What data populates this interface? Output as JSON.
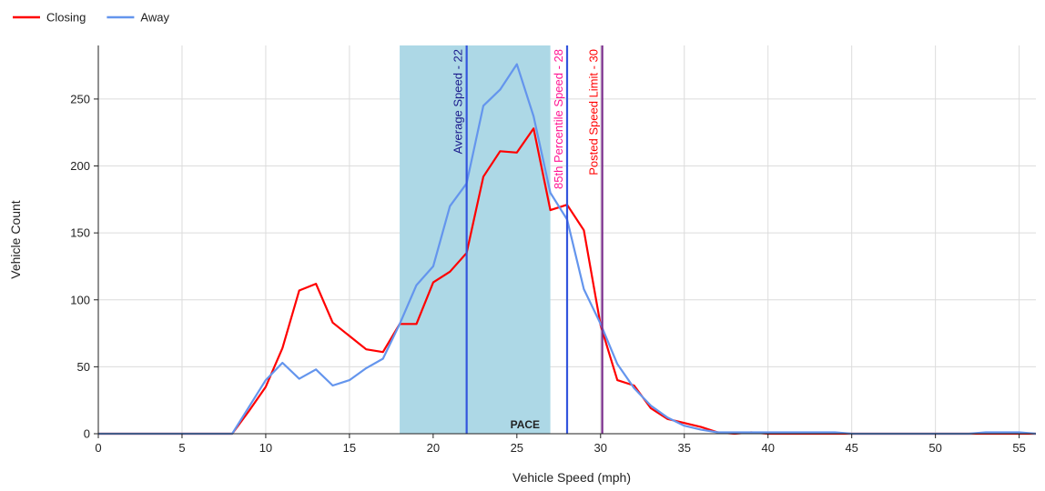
{
  "chart_data": {
    "type": "line",
    "xlabel": "Vehicle Speed (mph)",
    "ylabel": "Vehicle Count",
    "xlim": [
      0,
      56
    ],
    "ylim": [
      0,
      290
    ],
    "xticks": [
      0,
      5,
      10,
      15,
      20,
      25,
      30,
      35,
      40,
      45,
      50,
      55
    ],
    "yticks": [
      0,
      50,
      100,
      150,
      200,
      250
    ],
    "grid": true,
    "legend_position": "top-left",
    "x": [
      0,
      1,
      2,
      3,
      4,
      5,
      6,
      7,
      8,
      9,
      10,
      11,
      12,
      13,
      14,
      15,
      16,
      17,
      18,
      19,
      20,
      21,
      22,
      23,
      24,
      25,
      26,
      27,
      28,
      29,
      30,
      31,
      32,
      33,
      34,
      35,
      36,
      37,
      38,
      39,
      40,
      41,
      42,
      43,
      44,
      45,
      46,
      47,
      48,
      49,
      50,
      51,
      52,
      53,
      54,
      55,
      56
    ],
    "series": [
      {
        "name": "Closing",
        "color": "#ff0000",
        "values": [
          0,
          0,
          0,
          0,
          0,
          0,
          0,
          0,
          0,
          17,
          35,
          64,
          107,
          112,
          83,
          73,
          63,
          61,
          82,
          82,
          113,
          121,
          135,
          192,
          211,
          210,
          228,
          167,
          171,
          152,
          81,
          40,
          36,
          19,
          11,
          8,
          5,
          1,
          0,
          1,
          0,
          0,
          0,
          0,
          0,
          0,
          0,
          0,
          0,
          0,
          0,
          0,
          0,
          0,
          0,
          0,
          0
        ]
      },
      {
        "name": "Away",
        "color": "#6495ed",
        "values": [
          0,
          0,
          0,
          0,
          0,
          0,
          0,
          0,
          0,
          20,
          40,
          53,
          41,
          48,
          36,
          40,
          49,
          56,
          82,
          111,
          125,
          170,
          187,
          245,
          257,
          276,
          237,
          180,
          160,
          108,
          82,
          52,
          34,
          21,
          12,
          6,
          3,
          1,
          1,
          1,
          1,
          1,
          1,
          1,
          1,
          0,
          0,
          0,
          0,
          0,
          0,
          0,
          0,
          1,
          1,
          1,
          0
        ]
      }
    ],
    "pace_band": {
      "start": 18,
      "end": 27,
      "label": "PACE",
      "color": "#add8e6"
    },
    "markers": [
      {
        "label": "Average Speed - 22",
        "x": 22,
        "color": "#3355dd",
        "text_color": "#1a1a8c"
      },
      {
        "label": "85th Percentile Speed - 28",
        "x": 28,
        "color": "#3355dd",
        "text_color": "#ff1493"
      },
      {
        "label": "Posted Speed Limit - 30",
        "x": 30.1,
        "color": "#7b2d8c",
        "text_color": "#ff0000"
      }
    ]
  }
}
